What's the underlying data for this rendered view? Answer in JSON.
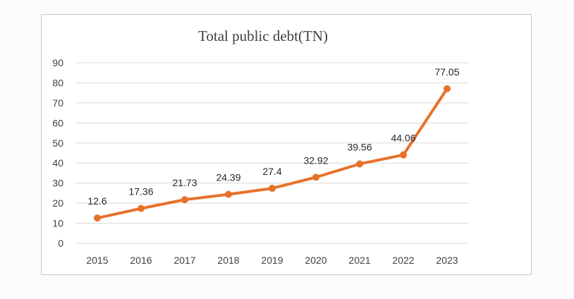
{
  "chart_data": {
    "type": "line",
    "title": "Total public debt(TN)",
    "categories": [
      "2015",
      "2016",
      "2017",
      "2018",
      "2019",
      "2020",
      "2021",
      "2022",
      "2023"
    ],
    "series": [
      {
        "values": [
          12.6,
          17.36,
          21.73,
          24.39,
          27.4,
          32.92,
          39.56,
          44.06,
          77.05
        ],
        "color": "#e8712a"
      }
    ],
    "data_labels": [
      "12.6",
      "17.36",
      "21.73",
      "24.39",
      "27.4",
      "32.92",
      "39.56",
      "44.06",
      "77.05"
    ],
    "ylim": [
      0,
      90
    ],
    "yticks": [
      "0",
      "10",
      "20",
      "30",
      "40",
      "50",
      "60",
      "70",
      "80",
      "90"
    ],
    "grid": true,
    "legend": "none"
  }
}
